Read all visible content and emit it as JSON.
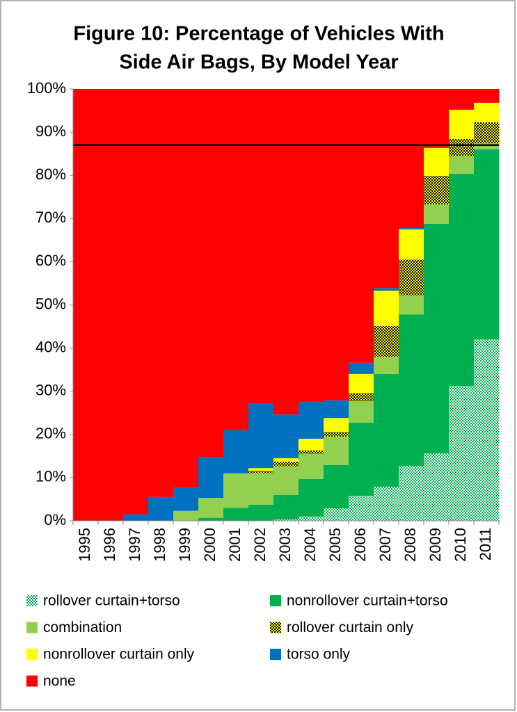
{
  "chart_data": {
    "type": "stacked_column",
    "title": [
      "Figure 10: Percentage of Vehicles With",
      "Side Air Bags, By Model Year"
    ],
    "categories": [
      "1995",
      "1996",
      "1997",
      "1998",
      "1999",
      "2000",
      "2001",
      "2002",
      "2003",
      "2004",
      "2005",
      "2006",
      "2007",
      "2008",
      "2009",
      "2010",
      "2011"
    ],
    "series": [
      {
        "name": "rollover curtain+torso",
        "color": "#00b050",
        "pattern": "checker",
        "pattern_color": "#ffffff",
        "values": [
          0,
          0,
          0,
          0,
          0,
          0,
          0,
          0,
          0.3,
          1,
          2.9,
          5.8,
          7.9,
          12.7,
          15.6,
          31.2,
          42
        ]
      },
      {
        "name": "nonrollover curtain+torso",
        "color": "#00b050",
        "values": [
          0,
          0,
          0,
          0,
          0,
          0.7,
          3,
          3.7,
          5.7,
          8.7,
          10,
          16.9,
          26.1,
          35.1,
          53.2,
          49.2,
          44
        ]
      },
      {
        "name": "combination",
        "color": "#92d050",
        "values": [
          0,
          0,
          0,
          0,
          2.3,
          4.6,
          8,
          7.3,
          6.6,
          5.8,
          6.6,
          5,
          4,
          4.4,
          4.5,
          4.1,
          1.4
        ]
      },
      {
        "name": "rollover curtain only",
        "color": "#ffff00",
        "pattern": "checker",
        "pattern_color": "#000000",
        "values": [
          0,
          0,
          0,
          0,
          0,
          0,
          0,
          0.6,
          1.1,
          0.8,
          1.1,
          1.9,
          7.1,
          8.3,
          6.6,
          3.9,
          4.9
        ]
      },
      {
        "name": "nonrollover curtain only",
        "color": "#ffff00",
        "values": [
          0,
          0,
          0,
          0,
          0,
          0,
          0,
          0.6,
          0.8,
          2.7,
          3.2,
          4.4,
          8.2,
          7,
          6.4,
          6.8,
          4.5
        ]
      },
      {
        "name": "torso only",
        "color": "#0070c0",
        "values": [
          0,
          0,
          1.5,
          5.5,
          5.3,
          9.5,
          10,
          15,
          10.1,
          8.5,
          4.1,
          2.6,
          0.6,
          0.3,
          0.3,
          0,
          0
        ]
      },
      {
        "name": "none",
        "color": "#ff0000",
        "values": [
          100,
          100,
          98.5,
          94.5,
          92.4,
          85.2,
          79,
          72.8,
          75.4,
          72.5,
          72.1,
          63.4,
          46.1,
          32.2,
          13.4,
          4.8,
          3.2
        ]
      }
    ],
    "ylim": [
      0,
      100
    ],
    "yticks": [
      {
        "value": 0,
        "label": "0%"
      },
      {
        "value": 10,
        "label": "10%"
      },
      {
        "value": 20,
        "label": "20%"
      },
      {
        "value": 30,
        "label": "30%"
      },
      {
        "value": 40,
        "label": "40%"
      },
      {
        "value": 50,
        "label": "50%"
      },
      {
        "value": 60,
        "label": "60%"
      },
      {
        "value": 70,
        "label": "70%"
      },
      {
        "value": 80,
        "label": "80%"
      },
      {
        "value": 90,
        "label": "90%"
      },
      {
        "value": 100,
        "label": "100%"
      }
    ],
    "hline": 87,
    "hline_color": "#000000",
    "legend": "bottom"
  }
}
